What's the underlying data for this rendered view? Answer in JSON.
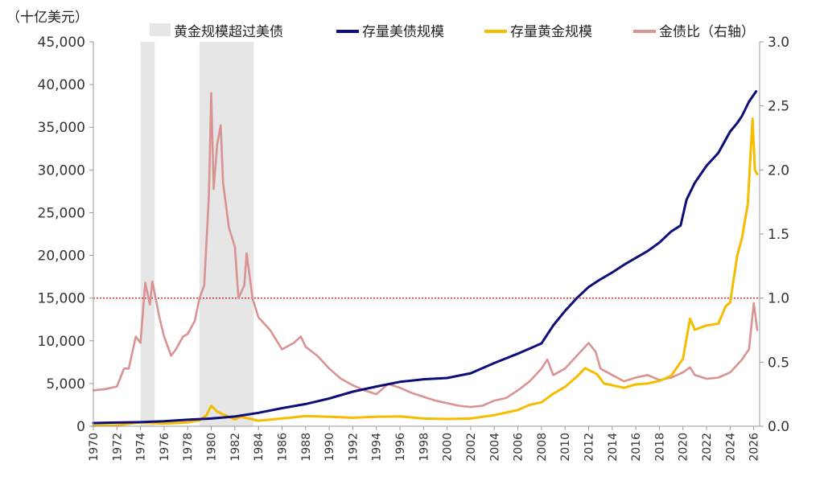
{
  "chart_data": {
    "type": "line",
    "title": "",
    "xlabel": "",
    "ylabel": "（十亿美元）",
    "xlim": [
      1970,
      2026.5
    ],
    "ylim": [
      0,
      45000
    ],
    "y2lim": [
      0,
      3.0
    ],
    "x_ticks": [
      1970,
      1972,
      1974,
      1976,
      1978,
      1980,
      1982,
      1984,
      1986,
      1988,
      1990,
      1992,
      1994,
      1996,
      1998,
      2000,
      2002,
      2004,
      2006,
      2008,
      2010,
      2012,
      2014,
      2016,
      2018,
      2020,
      2022,
      2024,
      2026
    ],
    "y_ticks": [
      0,
      5000,
      10000,
      15000,
      20000,
      25000,
      30000,
      35000,
      40000,
      45000
    ],
    "y_tick_labels": [
      "0",
      "5,000",
      "10,000",
      "15,000",
      "20,000",
      "25,000",
      "30,000",
      "35,000",
      "40,000",
      "45,000"
    ],
    "y2_ticks": [
      0.0,
      0.5,
      1.0,
      1.5,
      2.0,
      2.5,
      3.0
    ],
    "y2_tick_labels": [
      "0.0",
      "0.5",
      "1.0",
      "1.5",
      "2.0",
      "2.5",
      "3.0"
    ],
    "grid": false,
    "legend_position": "top",
    "reference_line": {
      "axis": "y2",
      "value": 1.0,
      "color": "#e02020",
      "style": "dotted"
    },
    "shaded_regions": {
      "name": "黄金规模超过美债",
      "color": "#e6e6e6",
      "ranges": [
        [
          1974.0,
          1975.2
        ],
        [
          1979.0,
          1983.6
        ]
      ]
    },
    "series": [
      {
        "name": "存量美债规模",
        "axis": "y",
        "color": "#0d0d7a",
        "x": [
          1970,
          1972,
          1974,
          1976,
          1978,
          1980,
          1982,
          1984,
          1986,
          1988,
          1990,
          1992,
          1994,
          1996,
          1998,
          2000,
          2002,
          2004,
          2006,
          2008,
          2009,
          2010,
          2011,
          2012,
          2013,
          2014,
          2015,
          2016,
          2017,
          2018,
          2019,
          2019.8,
          2020.3,
          2021,
          2022,
          2023,
          2024,
          2024.6,
          2025,
          2025.6,
          2026.2
        ],
        "values": [
          380,
          430,
          480,
          580,
          760,
          900,
          1140,
          1570,
          2120,
          2600,
          3250,
          4050,
          4650,
          5200,
          5500,
          5650,
          6200,
          7400,
          8500,
          9700,
          11800,
          13500,
          15000,
          16300,
          17200,
          18000,
          18900,
          19700,
          20500,
          21500,
          22800,
          23500,
          26500,
          28500,
          30500,
          32000,
          34500,
          35500,
          36300,
          38000,
          39200
        ]
      },
      {
        "name": "存量黄金规模",
        "axis": "y",
        "color": "#f5bc00",
        "x": [
          1970,
          1972,
          1974,
          1976,
          1978,
          1979,
          1979.6,
          1980,
          1980.5,
          1981,
          1982,
          1982.5,
          1983,
          1984,
          1986,
          1988,
          1990,
          1992,
          1994,
          1996,
          1998,
          2000,
          2002,
          2004,
          2006,
          2007,
          2008,
          2009,
          2010,
          2011,
          2011.7,
          2012,
          2012.7,
          2013.3,
          2014,
          2015,
          2016,
          2017,
          2018,
          2019,
          2020,
          2020.6,
          2021,
          2022,
          2023,
          2023.6,
          2024,
          2024.6,
          2025,
          2025.5,
          2025.9,
          2026.1,
          2026.3
        ],
        "values": [
          80,
          120,
          450,
          300,
          450,
          700,
          1300,
          2400,
          1700,
          1400,
          800,
          1100,
          950,
          650,
          900,
          1200,
          1100,
          1000,
          1100,
          1150,
          900,
          850,
          900,
          1300,
          1900,
          2500,
          2800,
          3800,
          4600,
          5800,
          6800,
          6600,
          6100,
          5000,
          4800,
          4500,
          4900,
          5000,
          5300,
          5900,
          7900,
          12600,
          11300,
          11800,
          12000,
          14000,
          14500,
          20000,
          22000,
          26000,
          36000,
          30000,
          29500
        ]
      },
      {
        "name": "金债比（右轴）",
        "axis": "y2",
        "color": "#d99393",
        "x": [
          1970,
          1971,
          1972,
          1972.6,
          1973,
          1973.6,
          1974,
          1974.4,
          1974.8,
          1975,
          1975.6,
          1976,
          1976.6,
          1977,
          1977.6,
          1978,
          1978.6,
          1979,
          1979.4,
          1979.8,
          1980,
          1980.2,
          1980.5,
          1980.8,
          1981,
          1981.5,
          1982,
          1982.3,
          1982.8,
          1983,
          1983.5,
          1984,
          1985,
          1986,
          1987,
          1987.6,
          1988,
          1989,
          1990,
          1991,
          1992,
          1993,
          1994,
          1995,
          1996,
          1997,
          1998,
          1999,
          2000,
          2001,
          2002,
          2003,
          2004,
          2005,
          2006,
          2007,
          2008,
          2008.5,
          2009,
          2010,
          2011,
          2011.7,
          2012,
          2012.6,
          2013,
          2014,
          2015,
          2016,
          2017,
          2018,
          2019,
          2020,
          2020.6,
          2021,
          2022,
          2023,
          2024,
          2025,
          2025.6,
          2026,
          2026.3
        ],
        "values": [
          0.28,
          0.29,
          0.31,
          0.45,
          0.45,
          0.7,
          0.65,
          1.12,
          0.95,
          1.13,
          0.85,
          0.7,
          0.55,
          0.6,
          0.7,
          0.72,
          0.82,
          1.0,
          1.1,
          1.8,
          2.6,
          1.85,
          2.2,
          2.35,
          1.9,
          1.55,
          1.4,
          1.0,
          1.1,
          1.35,
          1.0,
          0.85,
          0.75,
          0.6,
          0.65,
          0.7,
          0.62,
          0.55,
          0.45,
          0.37,
          0.32,
          0.28,
          0.25,
          0.33,
          0.3,
          0.26,
          0.23,
          0.2,
          0.18,
          0.16,
          0.15,
          0.16,
          0.2,
          0.22,
          0.28,
          0.35,
          0.45,
          0.52,
          0.4,
          0.45,
          0.55,
          0.62,
          0.65,
          0.58,
          0.45,
          0.4,
          0.35,
          0.38,
          0.4,
          0.36,
          0.38,
          0.42,
          0.46,
          0.4,
          0.37,
          0.38,
          0.42,
          0.52,
          0.6,
          0.96,
          0.75
        ]
      }
    ]
  }
}
